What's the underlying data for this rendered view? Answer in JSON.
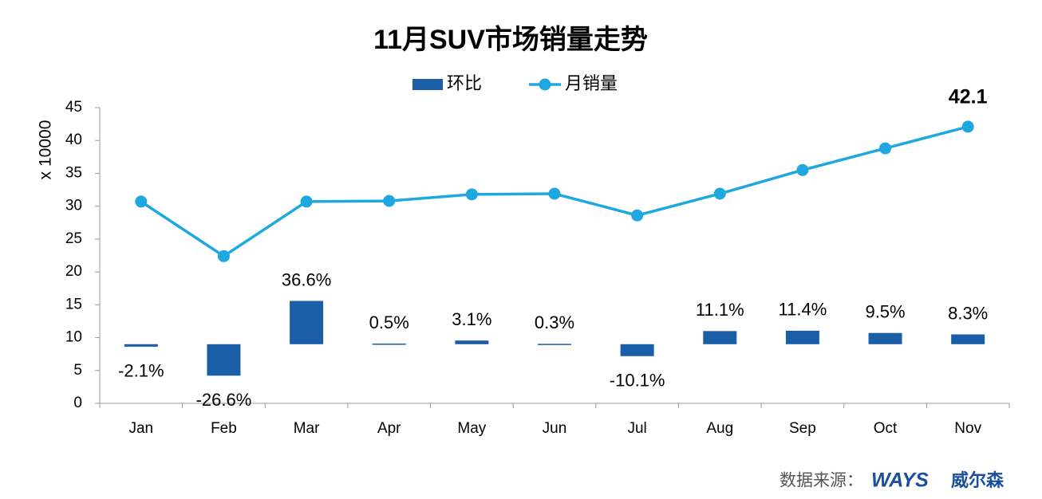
{
  "chart_data": {
    "type": "bar-line",
    "title": "11月SUV市场销量走势",
    "y_label": "x 10000",
    "categories": [
      "Jan",
      "Feb",
      "Mar",
      "Apr",
      "May",
      "Jun",
      "Jul",
      "Aug",
      "Sep",
      "Oct",
      "Nov"
    ],
    "ylim": [
      0,
      45
    ],
    "yticks": [
      0,
      5,
      10,
      15,
      20,
      25,
      30,
      35,
      40,
      45
    ],
    "y2lim": [
      -50,
      200
    ],
    "legend": "top",
    "grid": false,
    "series": [
      {
        "name": "环比",
        "type": "bar",
        "axis": "y2",
        "color": "#1a5ea8",
        "values": [
          -2.1,
          -26.6,
          36.6,
          0.5,
          3.1,
          0.3,
          -10.1,
          11.1,
          11.4,
          9.5,
          8.3
        ],
        "value_labels": [
          "-2.1%",
          "-26.6%",
          "36.6%",
          "0.5%",
          "3.1%",
          "0.3%",
          "-10.1%",
          "11.1%",
          "11.4%",
          "9.5%",
          "8.3%"
        ]
      },
      {
        "name": "月销量",
        "type": "line",
        "color": "#1fa8e0",
        "values": [
          30.7,
          22.4,
          30.7,
          30.8,
          31.8,
          31.9,
          28.6,
          31.9,
          35.5,
          38.8,
          42.1
        ],
        "value_labels": [
          null,
          null,
          null,
          null,
          null,
          null,
          null,
          null,
          null,
          null,
          "42.1"
        ]
      }
    ],
    "source": "数据来源：",
    "logo": "WAYS",
    "logo_name": "威尔森"
  }
}
